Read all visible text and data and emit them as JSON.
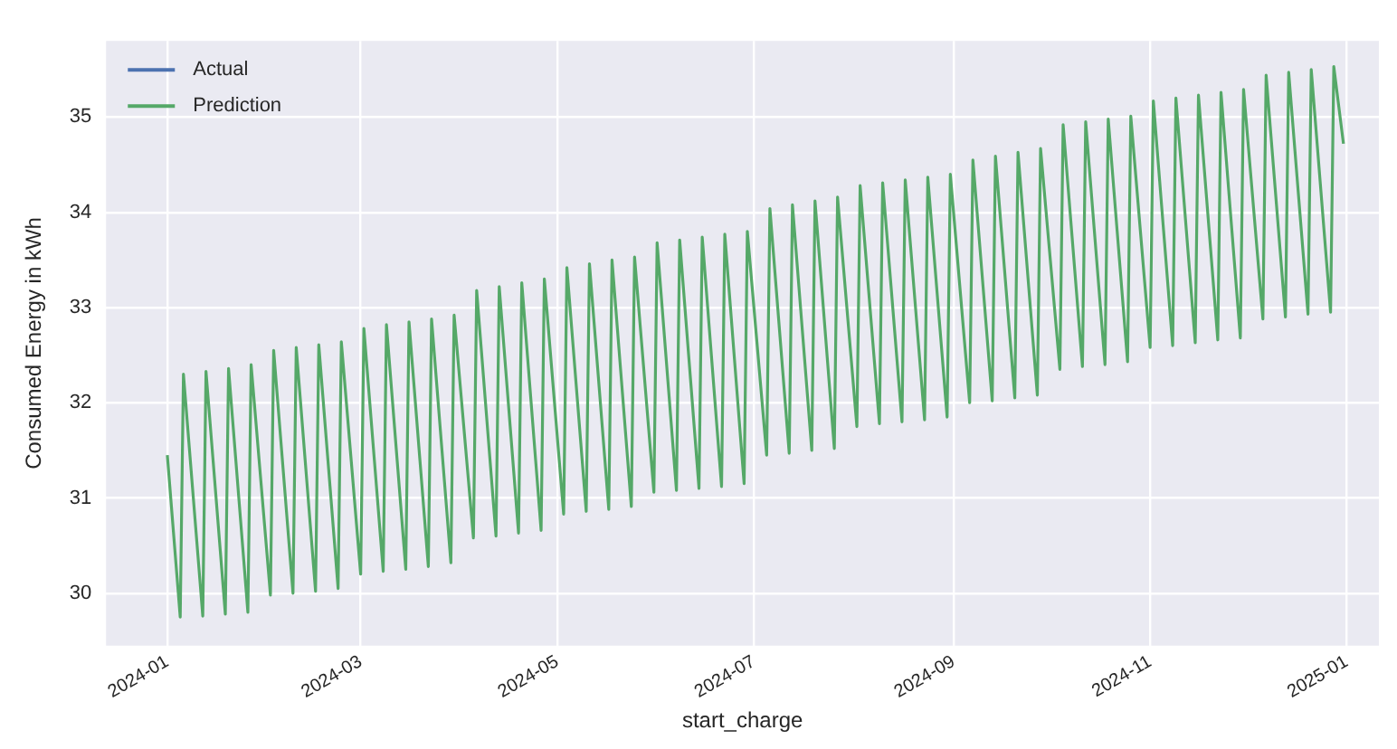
{
  "chart_data": {
    "type": "line",
    "xlabel": "start_charge",
    "ylabel": "Consumed Energy in kWh",
    "x": [
      "2024-01-01",
      "2024-01-05",
      "2024-01-06",
      "2024-01-12",
      "2024-01-13",
      "2024-01-19",
      "2024-01-20",
      "2024-01-26",
      "2024-01-27",
      "2024-02-02",
      "2024-02-03",
      "2024-02-09",
      "2024-02-10",
      "2024-02-16",
      "2024-02-17",
      "2024-02-23",
      "2024-02-24",
      "2024-03-01",
      "2024-03-02",
      "2024-03-08",
      "2024-03-09",
      "2024-03-15",
      "2024-03-16",
      "2024-03-22",
      "2024-03-23",
      "2024-03-29",
      "2024-03-30",
      "2024-04-05",
      "2024-04-06",
      "2024-04-12",
      "2024-04-13",
      "2024-04-19",
      "2024-04-20",
      "2024-04-26",
      "2024-04-27",
      "2024-05-03",
      "2024-05-04",
      "2024-05-10",
      "2024-05-11",
      "2024-05-17",
      "2024-05-18",
      "2024-05-24",
      "2024-05-25",
      "2024-05-31",
      "2024-06-01",
      "2024-06-07",
      "2024-06-08",
      "2024-06-14",
      "2024-06-15",
      "2024-06-21",
      "2024-06-22",
      "2024-06-28",
      "2024-06-29",
      "2024-07-05",
      "2024-07-06",
      "2024-07-12",
      "2024-07-13",
      "2024-07-19",
      "2024-07-20",
      "2024-07-26",
      "2024-07-27",
      "2024-08-02",
      "2024-08-03",
      "2024-08-09",
      "2024-08-10",
      "2024-08-16",
      "2024-08-17",
      "2024-08-23",
      "2024-08-24",
      "2024-08-30",
      "2024-08-31",
      "2024-09-06",
      "2024-09-07",
      "2024-09-13",
      "2024-09-14",
      "2024-09-20",
      "2024-09-21",
      "2024-09-27",
      "2024-09-28",
      "2024-10-04",
      "2024-10-05",
      "2024-10-11",
      "2024-10-12",
      "2024-10-18",
      "2024-10-19",
      "2024-10-25",
      "2024-10-26",
      "2024-11-01",
      "2024-11-02",
      "2024-11-08",
      "2024-11-09",
      "2024-11-15",
      "2024-11-16",
      "2024-11-22",
      "2024-11-23",
      "2024-11-29",
      "2024-11-30",
      "2024-12-06",
      "2024-12-07",
      "2024-12-13",
      "2024-12-14",
      "2024-12-20",
      "2024-12-21",
      "2024-12-27",
      "2024-12-28",
      "2024-12-31"
    ],
    "series": [
      {
        "name": "Actual",
        "color": "#4c72b0",
        "values": [
          null,
          null,
          null,
          null,
          null,
          null,
          null,
          null,
          null,
          null,
          null,
          null,
          null,
          null,
          null,
          null,
          null,
          null,
          null,
          null,
          null,
          null,
          null,
          null,
          null,
          null,
          null,
          null,
          null,
          null,
          null,
          null,
          null,
          null,
          null,
          null,
          null,
          null,
          null,
          null,
          null,
          null,
          null,
          null,
          null,
          null,
          null,
          null,
          null,
          null,
          null,
          null,
          null,
          null,
          null,
          null,
          null,
          null,
          null,
          null,
          null,
          null,
          null,
          null,
          null,
          null,
          null,
          null,
          null,
          null,
          null,
          null,
          null,
          null,
          null,
          null,
          null,
          null,
          null,
          null,
          null,
          null,
          null,
          null,
          null,
          null,
          null,
          null,
          null,
          null,
          null,
          null,
          null,
          null,
          null,
          null,
          null,
          null,
          null,
          null,
          null,
          null,
          null,
          null,
          null,
          null
        ]
      },
      {
        "name": "Prediction",
        "color": "#55a868",
        "values": [
          31.45,
          29.75,
          32.3,
          29.76,
          32.33,
          29.78,
          32.36,
          29.8,
          32.4,
          29.98,
          32.55,
          30.0,
          32.58,
          30.02,
          32.61,
          30.05,
          32.64,
          30.2,
          32.78,
          30.23,
          32.82,
          30.25,
          32.85,
          30.28,
          32.88,
          30.32,
          32.92,
          30.58,
          33.18,
          30.6,
          33.22,
          30.63,
          33.26,
          30.66,
          33.3,
          30.83,
          33.42,
          30.86,
          33.46,
          30.88,
          33.5,
          30.91,
          33.53,
          31.06,
          33.68,
          31.08,
          33.71,
          31.1,
          33.74,
          31.12,
          33.77,
          31.15,
          33.8,
          31.45,
          34.04,
          31.47,
          34.08,
          31.5,
          34.12,
          31.52,
          34.16,
          31.75,
          34.28,
          31.78,
          34.31,
          31.8,
          34.34,
          31.82,
          34.37,
          31.85,
          34.4,
          32.0,
          34.55,
          32.02,
          34.59,
          32.05,
          34.63,
          32.08,
          34.67,
          32.35,
          34.92,
          32.38,
          34.95,
          32.4,
          34.98,
          32.43,
          35.01,
          32.58,
          35.17,
          32.6,
          35.2,
          32.63,
          35.23,
          32.66,
          35.26,
          32.68,
          35.29,
          32.88,
          35.44,
          32.9,
          35.47,
          32.93,
          35.5,
          32.95,
          35.53,
          34.72
        ]
      }
    ],
    "xlim": [
      "2023-12-13",
      "2025-01-11"
    ],
    "xticks": [
      "2024-01",
      "2024-03",
      "2024-05",
      "2024-07",
      "2024-09",
      "2024-11",
      "2025-01"
    ],
    "ylim": [
      29.45,
      35.8
    ],
    "yticks": [
      30,
      31,
      32,
      33,
      34,
      35
    ],
    "grid": true,
    "legend": "top left"
  }
}
